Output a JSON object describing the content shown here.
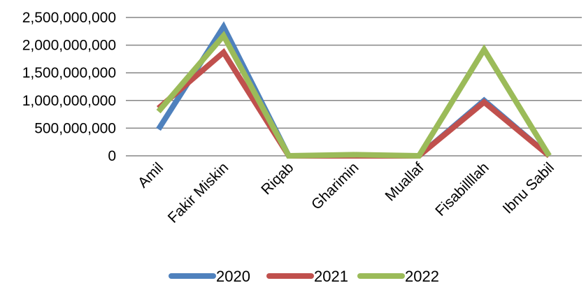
{
  "chart_data": {
    "type": "line",
    "categories": [
      "Amil",
      "Fakir Miskin",
      "Riqab",
      "Gharimin",
      "Muallaf",
      "Fisabillllah",
      "Ibnu Sabil"
    ],
    "series": [
      {
        "name": "2020",
        "color": "#4F81BD",
        "values": [
          480000000,
          2330000000,
          0,
          0,
          0,
          1000000000,
          0
        ]
      },
      {
        "name": "2021",
        "color": "#C0504D",
        "values": [
          860000000,
          1870000000,
          0,
          0,
          0,
          970000000,
          0
        ]
      },
      {
        "name": "2022",
        "color": "#9BBB59",
        "values": [
          800000000,
          2170000000,
          0,
          20000000,
          0,
          1920000000,
          0
        ]
      }
    ],
    "y_ticks": [
      "0",
      "500,000,000",
      "1,000,000,000",
      "1,500,000,000",
      "2,000,000,000",
      "2,500,000,000"
    ],
    "ylim": [
      0,
      2500000000
    ],
    "grid": true,
    "legend_position": "bottom"
  }
}
